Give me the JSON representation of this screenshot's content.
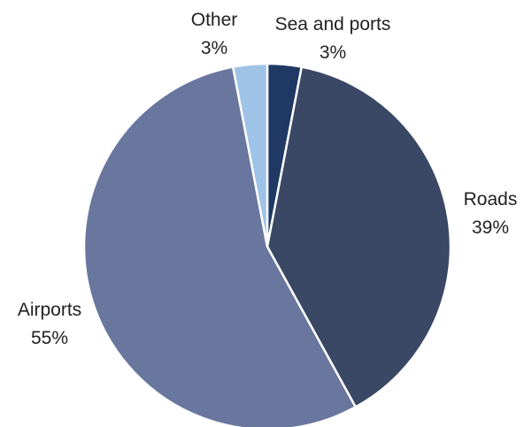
{
  "chart_data": {
    "type": "pie",
    "title": "",
    "slices": [
      {
        "label": "Sea and ports",
        "value": 3,
        "value_label": "3%",
        "color": "#1f3864"
      },
      {
        "label": "Roads",
        "value": 39,
        "value_label": "39%",
        "color": "#3a4865"
      },
      {
        "label": "Airports",
        "value": 55,
        "value_label": "55%",
        "color": "#69779e"
      },
      {
        "label": "Other",
        "value": 3,
        "value_label": "3%",
        "color": "#9fc3e7"
      }
    ],
    "start_angle_deg": 0,
    "direction": "clockwise",
    "legend": "none",
    "slice_border_color": "#ffffff"
  }
}
